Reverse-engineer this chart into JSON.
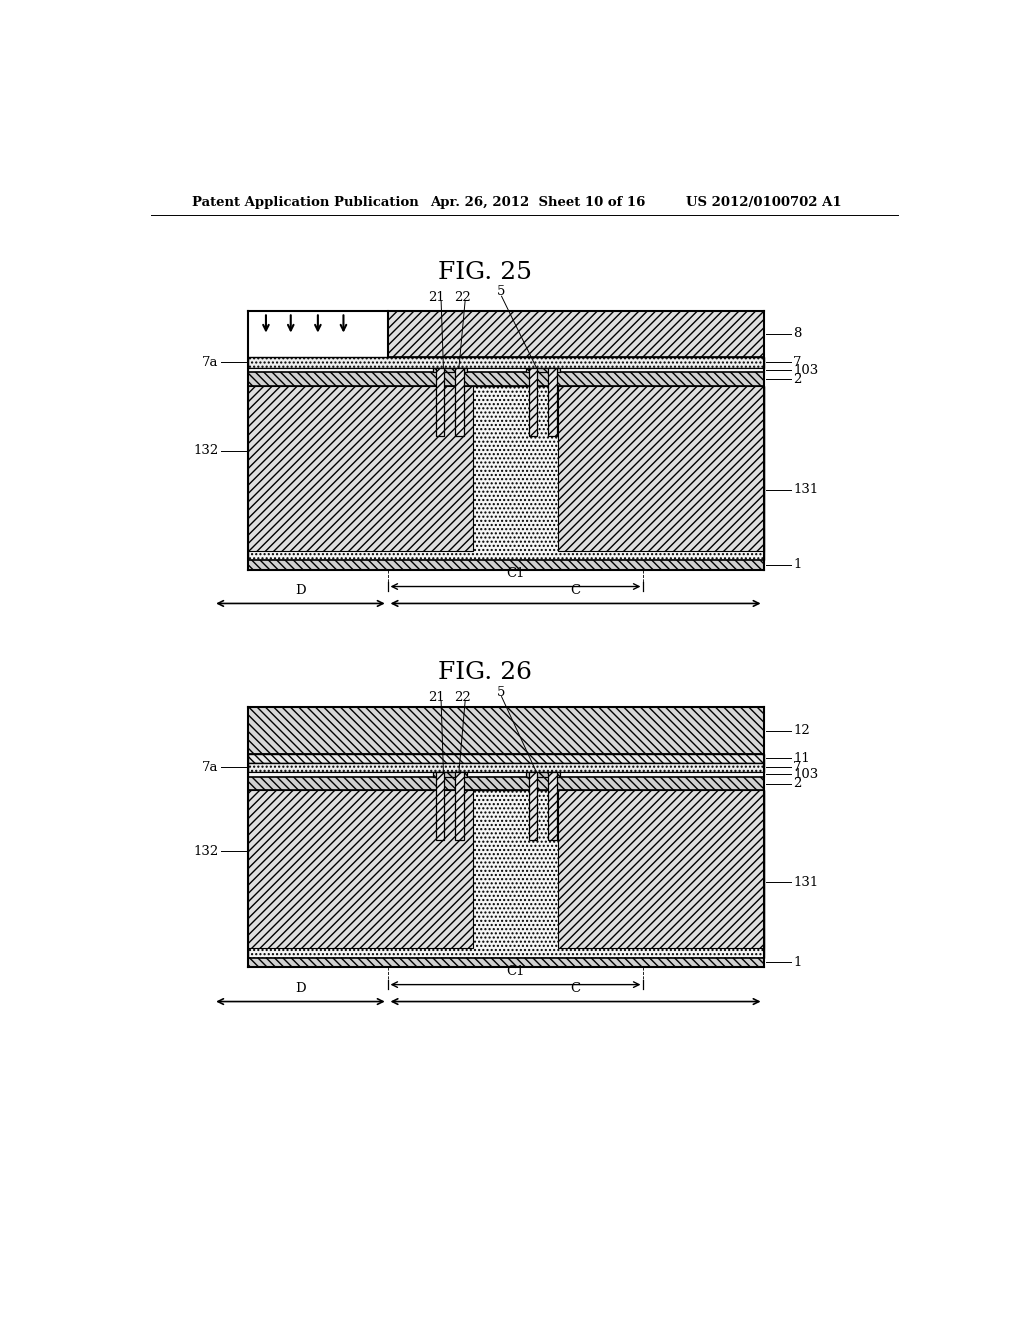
{
  "header_left": "Patent Application Publication",
  "header_mid": "Apr. 26, 2012  Sheet 10 of 16",
  "header_right": "US 2012/0100702 A1",
  "fig25_title": "FIG. 25",
  "fig26_title": "FIG. 26",
  "bg_color": "#ffffff"
}
